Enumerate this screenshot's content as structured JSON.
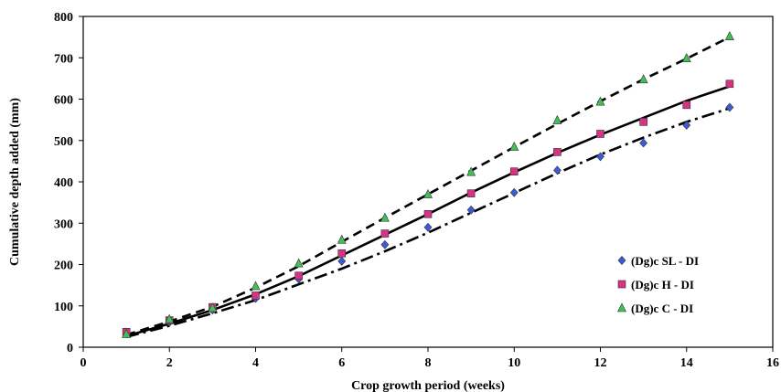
{
  "chart_data": {
    "type": "scatter",
    "title": "",
    "xlabel": "Crop growth period (weeks)",
    "ylabel": "Cumulative depth added (mm)",
    "xlim": [
      0,
      16
    ],
    "ylim": [
      0,
      800
    ],
    "x_ticks": [
      "0",
      "2",
      "4",
      "6",
      "8",
      "10",
      "12",
      "14",
      "16"
    ],
    "y_ticks": [
      "0",
      "100",
      "200",
      "300",
      "400",
      "500",
      "600",
      "700",
      "800"
    ],
    "grid": false,
    "legend_position": "bottom-right",
    "series": [
      {
        "name": "(Dg)c SL - DI",
        "marker": "diamond",
        "color": "#3b5bdb",
        "trend_style": "dash-dot",
        "x": [
          1,
          2,
          3,
          4,
          5,
          6,
          7,
          8,
          9,
          10,
          11,
          12,
          13,
          14,
          15
        ],
        "values": [
          36,
          60,
          90,
          118,
          165,
          208,
          248,
          290,
          332,
          374,
          428,
          461,
          494,
          537,
          580
        ],
        "trend": [
          25,
          52,
          82,
          114,
          152,
          190,
          232,
          277,
          325,
          373,
          421,
          466,
          507,
          545,
          578
        ]
      },
      {
        "name": "(Dg)c H - DI",
        "marker": "square",
        "color": "#d63384",
        "trend_style": "solid",
        "x": [
          1,
          2,
          3,
          4,
          5,
          6,
          7,
          8,
          9,
          10,
          11,
          12,
          13,
          14,
          15
        ],
        "values": [
          37,
          65,
          97,
          125,
          173,
          227,
          275,
          322,
          372,
          425,
          472,
          516,
          545,
          586,
          637
        ],
        "trend": [
          27,
          57,
          90,
          128,
          172,
          222,
          272,
          322,
          374,
          423,
          470,
          514,
          555,
          596,
          631
        ]
      },
      {
        "name": "(Dg)c C - DI",
        "marker": "triangle",
        "color": "#40c057",
        "trend_style": "dashed",
        "x": [
          1,
          2,
          3,
          4,
          5,
          6,
          7,
          8,
          9,
          10,
          11,
          12,
          13,
          14,
          15
        ],
        "values": [
          32,
          68,
          95,
          148,
          203,
          260,
          313,
          370,
          424,
          485,
          549,
          594,
          648,
          699,
          752
        ],
        "trend": [
          30,
          62,
          98,
          144,
          196,
          255,
          313,
          370,
          427,
          484,
          540,
          595,
          648,
          698,
          750
        ]
      }
    ]
  }
}
